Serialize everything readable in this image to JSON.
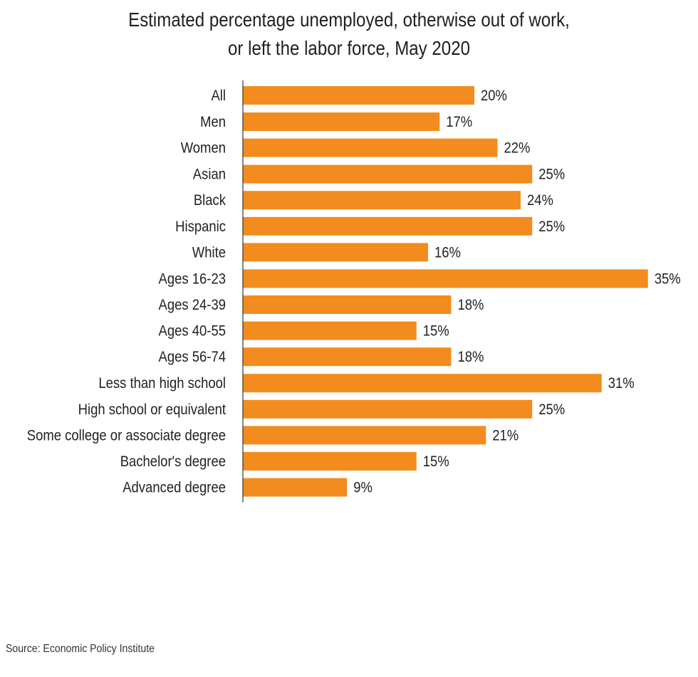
{
  "chart_data": {
    "type": "bar",
    "orientation": "horizontal",
    "title_lines": [
      "Estimated percentage unemployed, otherwise out of work,",
      "or left the labor force, May 2020"
    ],
    "groups": [
      {
        "categories": [
          "All"
        ],
        "values": [
          20
        ],
        "labels": [
          "20%"
        ]
      },
      {
        "categories": [
          "Men",
          "Women"
        ],
        "values": [
          17,
          22
        ],
        "labels": [
          "17%",
          "22%"
        ]
      },
      {
        "categories": [
          "Asian",
          "Black",
          "Hispanic",
          "White"
        ],
        "values": [
          25,
          24,
          25,
          16
        ],
        "labels": [
          "25%",
          "24%",
          "25%",
          "16%"
        ]
      },
      {
        "categories": [
          "Ages 16-23",
          "Ages 24-39",
          "Ages 40-55",
          "Ages 56-74"
        ],
        "values": [
          35,
          18,
          15,
          18
        ],
        "labels": [
          "35%",
          "18%",
          "15%",
          "18%"
        ]
      },
      {
        "categories": [
          "Less than high school",
          "High school or equivalent",
          "Some college or associate degree",
          "Bachelor's degree",
          "Advanced degree"
        ],
        "values": [
          31,
          25,
          21,
          15,
          9
        ],
        "labels": [
          "31%",
          "25%",
          "21%",
          "15%",
          "9%"
        ]
      }
    ],
    "xlim": [
      0,
      35
    ],
    "grid": false,
    "legend": "none",
    "bar_color": "#F28C1E"
  },
  "source": "Source: Economic Policy Institute"
}
